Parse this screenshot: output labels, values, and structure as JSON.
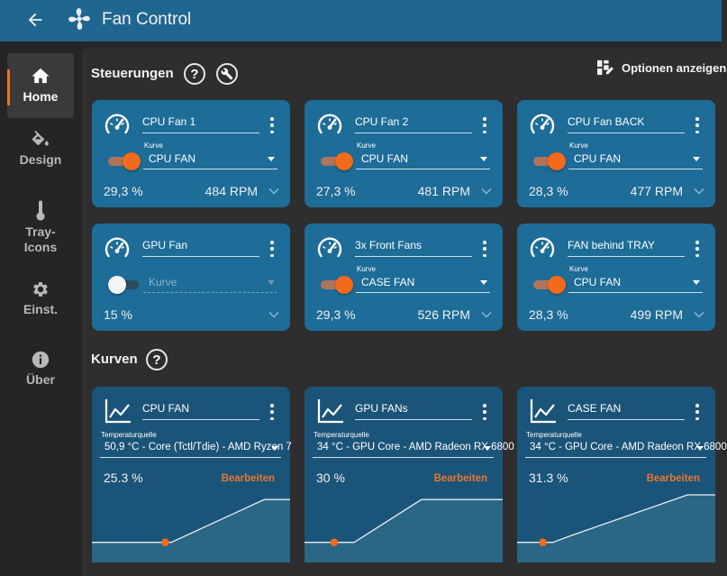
{
  "app": {
    "title": "Fan Control"
  },
  "sidebar": {
    "items": [
      {
        "label": "Home",
        "icon": "home-icon"
      },
      {
        "label": "Design",
        "icon": "paint-bucket-icon"
      },
      {
        "label": "Tray-\nIcons",
        "icon": "thermometer-icon"
      },
      {
        "label": "Einst.",
        "icon": "gear-icon"
      },
      {
        "label": "Über",
        "icon": "info-icon"
      }
    ]
  },
  "controls": {
    "heading": "Steuerungen",
    "help_glyph": "?",
    "options_label": "Optionen anzeigen",
    "cards": [
      {
        "name": "CPU Fan 1",
        "enabled": true,
        "curve_label": "Kurve",
        "curve": "CPU FAN",
        "percent": "29,3 %",
        "rpm": "484 RPM"
      },
      {
        "name": "CPU Fan 2",
        "enabled": true,
        "curve_label": "Kurve",
        "curve": "CPU FAN",
        "percent": "27,3 %",
        "rpm": "481 RPM"
      },
      {
        "name": "CPU Fan BACK",
        "enabled": true,
        "curve_label": "Kurve",
        "curve": "CPU FAN",
        "percent": "28,3 %",
        "rpm": "477 RPM"
      },
      {
        "name": "GPU Fan",
        "enabled": false,
        "curve_placeholder": "Kurve",
        "percent": "15 %",
        "rpm": ""
      },
      {
        "name": "3x Front Fans",
        "enabled": true,
        "curve_label": "Kurve",
        "curve": "CASE FAN",
        "percent": "29,3 %",
        "rpm": "526 RPM"
      },
      {
        "name": "FAN behind TRAY",
        "enabled": true,
        "curve_label": "Kurve",
        "curve": "CPU FAN",
        "percent": "28,3 %",
        "rpm": "499 RPM"
      }
    ]
  },
  "curves": {
    "heading": "Kurven",
    "help_glyph": "?",
    "cards": [
      {
        "name": "CPU FAN",
        "source_label": "Temperaturquelle",
        "source": "50,9 °C - Core (Tctl/Tdie) - AMD Ryzen 7",
        "percent": "25.3 %",
        "edit_label": "Bearbeiten",
        "curve_points": [
          [
            0,
            0.25
          ],
          [
            0.4,
            0.25
          ],
          [
            0.87,
            0.9
          ],
          [
            1.0,
            0.9
          ]
        ],
        "current_point": [
          0.37,
          0.25
        ]
      },
      {
        "name": "GPU FANs",
        "source_label": "Temperaturquelle",
        "source": "34 °C - GPU Core - AMD Radeon RX 6800",
        "percent": "30 %",
        "edit_label": "Bearbeiten",
        "curve_points": [
          [
            0,
            0.25
          ],
          [
            0.25,
            0.25
          ],
          [
            0.59,
            0.9
          ],
          [
            1.0,
            0.9
          ]
        ],
        "current_point": [
          0.15,
          0.25
        ]
      },
      {
        "name": "CASE FAN",
        "source_label": "Temperaturquelle",
        "source": "34 °C - GPU Core - AMD Radeon RX 6800",
        "percent": "31.3 %",
        "edit_label": "Bearbeiten",
        "curve_points": [
          [
            0,
            0.25
          ],
          [
            0.18,
            0.25
          ],
          [
            0.27,
            0.35
          ],
          [
            0.86,
            0.97
          ],
          [
            1.0,
            0.97
          ]
        ],
        "current_point": [
          0.13,
          0.25
        ]
      }
    ]
  },
  "colors": {
    "titlebar": "#1f6690",
    "fan_card": "#1e6c98",
    "curve_card": "#1b5479",
    "accent": "#f26a1b",
    "edit_link": "#e8762e"
  }
}
